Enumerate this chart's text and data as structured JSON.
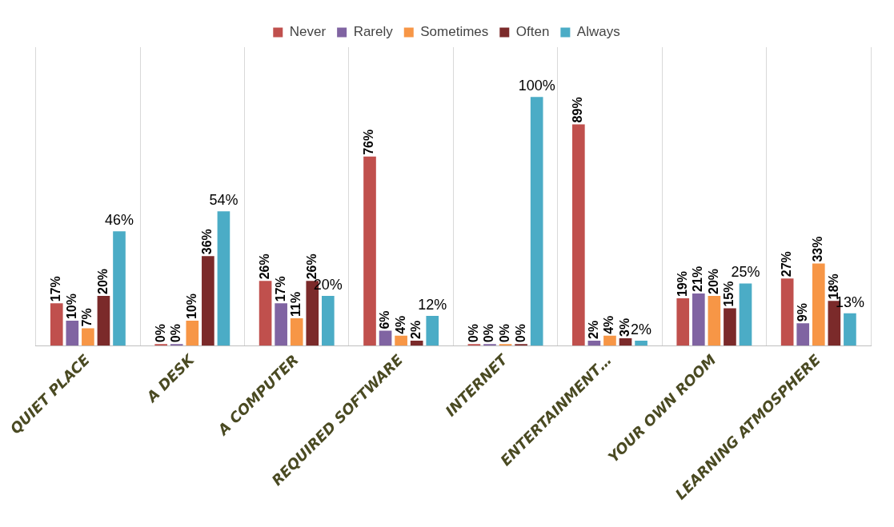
{
  "chart_data": {
    "type": "bar",
    "categories": [
      "QUIET PLACE",
      "A DESK",
      "A COMPUTER",
      "REQUIRED SOFTWARE",
      "INTERNET",
      "ENTERTAINMENT…",
      "YOUR OWN ROOM",
      "LEARNING ATMOSPHERE"
    ],
    "series": [
      {
        "name": "Never",
        "color": "#c0504d",
        "values": [
          17,
          0,
          26,
          76,
          0,
          89,
          19,
          27
        ],
        "value_labels": [
          "17%",
          "0%",
          "26%",
          "76%",
          "0%",
          "89%",
          "19%",
          "27%"
        ]
      },
      {
        "name": "Rarely",
        "color": "#8064a2",
        "values": [
          10,
          0,
          17,
          6,
          0,
          2,
          21,
          9
        ],
        "value_labels": [
          "10%",
          "0%",
          "17%",
          "6%",
          "0%",
          "2%",
          "21%",
          "9%"
        ]
      },
      {
        "name": "Sometimes",
        "color": "#f79646",
        "values": [
          7,
          10,
          11,
          4,
          0,
          4,
          20,
          33
        ],
        "value_labels": [
          "7%",
          "10%",
          "11%",
          "4%",
          "0%",
          "4%",
          "20%",
          "33%"
        ]
      },
      {
        "name": "Often",
        "color": "#7b2a2a",
        "values": [
          20,
          36,
          26,
          2,
          0,
          3,
          15,
          18
        ],
        "value_labels": [
          "20%",
          "36%",
          "26%",
          "2%",
          "0%",
          "3%",
          "15%",
          "18%"
        ]
      },
      {
        "name": "Always",
        "color": "#4bacc6",
        "values": [
          46,
          54,
          20,
          12,
          100,
          2,
          25,
          13
        ],
        "value_labels": [
          "46%",
          "54%",
          "20%",
          "12%",
          "100%",
          "2%",
          "25%",
          "13%"
        ]
      }
    ],
    "grid": "x",
    "legend": "top"
  }
}
